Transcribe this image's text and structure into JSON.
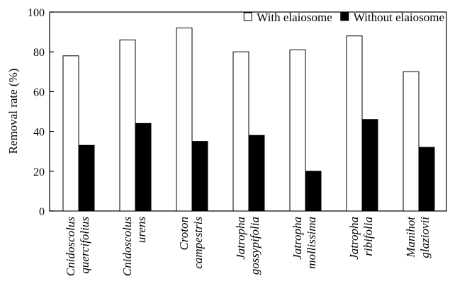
{
  "chart_data": {
    "type": "bar",
    "title": "",
    "xlabel": "",
    "ylabel": "Removal rate (%)",
    "ylim": [
      0,
      100
    ],
    "yticks": [
      0,
      20,
      40,
      60,
      80,
      100
    ],
    "grid": false,
    "legend_position": "top-right",
    "categories": [
      [
        "Cnidoscolus",
        "quercifolius"
      ],
      [
        "Cnidoscolus",
        "urens"
      ],
      [
        "Croton",
        "campestris"
      ],
      [
        "Jatropha",
        "gossypifolia"
      ],
      [
        "Jatropha",
        "mollissima"
      ],
      [
        "Jatropha",
        "ribifolia"
      ],
      [
        "Manihot",
        "glaziovii"
      ]
    ],
    "series": [
      {
        "name": "With elaiosome",
        "color": "#ffffff",
        "values": [
          78,
          86,
          92,
          80,
          81,
          88,
          70
        ]
      },
      {
        "name": "Without elaiosome",
        "color": "#000000",
        "values": [
          33,
          44,
          35,
          38,
          20,
          46,
          32
        ]
      }
    ]
  }
}
